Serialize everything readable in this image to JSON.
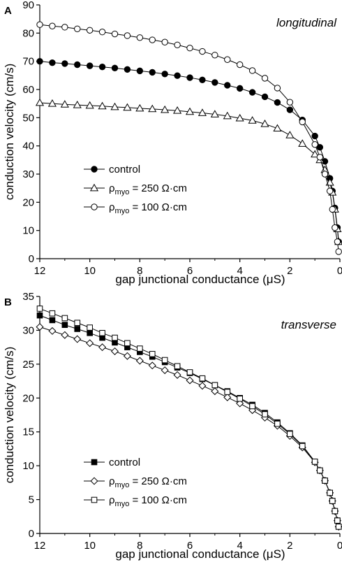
{
  "chart_data": [
    {
      "panel": "A",
      "title": "longitudinal",
      "type": "line",
      "xlabel": "gap junctional conductance (μS)",
      "ylabel": "conduction velocity (cm/s)",
      "xlim": [
        12,
        0
      ],
      "ylim": [
        0,
        90
      ],
      "xticks": [
        12,
        10,
        8,
        6,
        4,
        2,
        0
      ],
      "yticks": [
        0,
        10,
        20,
        30,
        40,
        50,
        60,
        70,
        80,
        90
      ],
      "legend_position": "bottom-left",
      "series": [
        {
          "name": "control",
          "marker": "filled-circle",
          "x": [
            12,
            11.5,
            11,
            10.5,
            10,
            9.5,
            9,
            8.5,
            8,
            7.5,
            7,
            6.5,
            6,
            5.5,
            5,
            4.5,
            4,
            3.5,
            3,
            2.5,
            2,
            1.5,
            1,
            0.8,
            0.6,
            0.4,
            0.3,
            0.2,
            0.1,
            0.05
          ],
          "y": [
            70,
            69.5,
            69.2,
            68.8,
            68.4,
            68,
            67.6,
            67.1,
            66.6,
            66.1,
            65.5,
            64.9,
            64.2,
            63.4,
            62.5,
            61.5,
            60.4,
            59,
            57.4,
            55.4,
            52.8,
            49.2,
            43.5,
            39.5,
            34.5,
            28.5,
            24,
            18,
            11,
            6
          ]
        },
        {
          "name": "ρmyo = 250 Ω·cm",
          "label_main": "ρ",
          "label_sub": "myo",
          "label_rest": " = 250 Ω·cm",
          "marker": "open-triangle",
          "x": [
            12,
            11.5,
            11,
            10.5,
            10,
            9.5,
            9,
            8.5,
            8,
            7.5,
            7,
            6.5,
            6,
            5.5,
            5,
            4.5,
            4,
            3.5,
            3,
            2.5,
            2,
            1.5,
            1,
            0.8,
            0.6,
            0.4,
            0.3,
            0.2,
            0.1,
            0.05
          ],
          "y": [
            55.3,
            55,
            54.7,
            54.5,
            54.3,
            54.1,
            53.8,
            53.6,
            53.3,
            53.1,
            52.8,
            52.5,
            52.1,
            51.7,
            51.2,
            50.6,
            49.8,
            49,
            47.8,
            46.2,
            43.8,
            40.8,
            37,
            35,
            31.5,
            27,
            23.5,
            17.5,
            10.5,
            6
          ]
        },
        {
          "name": "ρmyo = 100 Ω·cm",
          "label_main": "ρ",
          "label_sub": "myo",
          "label_rest": " = 100 Ω·cm",
          "marker": "open-circle",
          "x": [
            12,
            11.5,
            11,
            10.5,
            10,
            9.5,
            9,
            8.5,
            8,
            7.5,
            7,
            6.5,
            6,
            5.5,
            5,
            4.5,
            4,
            3.5,
            3,
            2.5,
            2,
            1.5,
            1,
            0.8,
            0.6,
            0.4,
            0.3,
            0.2,
            0.1,
            0.05
          ],
          "y": [
            83,
            82.5,
            82.1,
            81.5,
            81,
            80.4,
            79.7,
            79.1,
            78.4,
            77.6,
            76.8,
            75.8,
            74.7,
            73.5,
            72.2,
            70.6,
            68.8,
            66.7,
            64,
            60.5,
            55.5,
            48.5,
            40.5,
            36,
            30,
            24,
            17.5,
            11,
            6,
            2.5
          ]
        }
      ]
    },
    {
      "panel": "B",
      "title": "transverse",
      "type": "line",
      "xlabel": "gap junctional conductance (μS)",
      "ylabel": "conduction velocity (cm/s)",
      "xlim": [
        12,
        0
      ],
      "ylim": [
        0,
        35
      ],
      "xticks": [
        12,
        10,
        8,
        6,
        4,
        2,
        0
      ],
      "yticks": [
        0,
        5,
        10,
        15,
        20,
        25,
        30,
        35
      ],
      "legend_position": "bottom-left",
      "series": [
        {
          "name": "control",
          "marker": "filled-square",
          "x": [
            12,
            11.5,
            11,
            10.5,
            10,
            9.5,
            9,
            8.5,
            8,
            7.5,
            7,
            6.5,
            6,
            5.5,
            5,
            4.5,
            4,
            3.5,
            3,
            2.5,
            2,
            1.5,
            1,
            0.8,
            0.6,
            0.4,
            0.3,
            0.2,
            0.1,
            0.05
          ],
          "y": [
            32.2,
            31.5,
            30.8,
            30.2,
            29.6,
            28.9,
            28.2,
            27.5,
            26.8,
            26.1,
            25.3,
            24.5,
            23.7,
            22.8,
            21.9,
            21,
            20,
            19,
            17.8,
            16.4,
            14.8,
            13,
            10.6,
            9.3,
            7.8,
            6,
            4.8,
            3.3,
            1.9,
            1
          ]
        },
        {
          "name": "ρmyo = 250 Ω·cm",
          "label_main": "ρ",
          "label_sub": "myo",
          "label_rest": " = 250 Ω·cm",
          "marker": "open-diamond",
          "x": [
            12,
            11.5,
            11,
            10.5,
            10,
            9.5,
            9,
            8.5,
            8,
            7.5,
            7,
            6.5,
            6,
            5.5,
            5,
            4.5,
            4,
            3.5,
            3,
            2.5,
            2,
            1.5,
            1,
            0.8,
            0.6,
            0.4,
            0.3,
            0.2,
            0.1,
            0.05
          ],
          "y": [
            30.5,
            29.9,
            29.3,
            28.7,
            28.1,
            27.5,
            26.9,
            26.2,
            25.5,
            24.8,
            24.1,
            23.4,
            22.6,
            21.8,
            21,
            20.1,
            19.2,
            18.2,
            17.1,
            15.9,
            14.4,
            12.7,
            10.5,
            9.3,
            7.8,
            6,
            4.8,
            3.3,
            1.9,
            1
          ]
        },
        {
          "name": "ρmyo = 100 Ω·cm",
          "label_main": "ρ",
          "label_sub": "myo",
          "label_rest": " = 100 Ω·cm",
          "marker": "open-square",
          "x": [
            12,
            11.5,
            11,
            10.5,
            10,
            9.5,
            9,
            8.5,
            8,
            7.5,
            7,
            6.5,
            6,
            5.5,
            5,
            4.5,
            4,
            3.5,
            3,
            2.5,
            2,
            1.5,
            1,
            0.8,
            0.6,
            0.4,
            0.3,
            0.2,
            0.1,
            0.05
          ],
          "y": [
            33.2,
            32.5,
            31.8,
            31.1,
            30.4,
            29.6,
            28.9,
            28.1,
            27.3,
            26.5,
            25.6,
            24.7,
            23.8,
            22.9,
            21.9,
            20.9,
            19.9,
            18.8,
            17.6,
            16.2,
            14.7,
            12.9,
            10.6,
            9.3,
            7.8,
            6,
            4.8,
            3.3,
            1.9,
            1
          ]
        }
      ]
    }
  ]
}
